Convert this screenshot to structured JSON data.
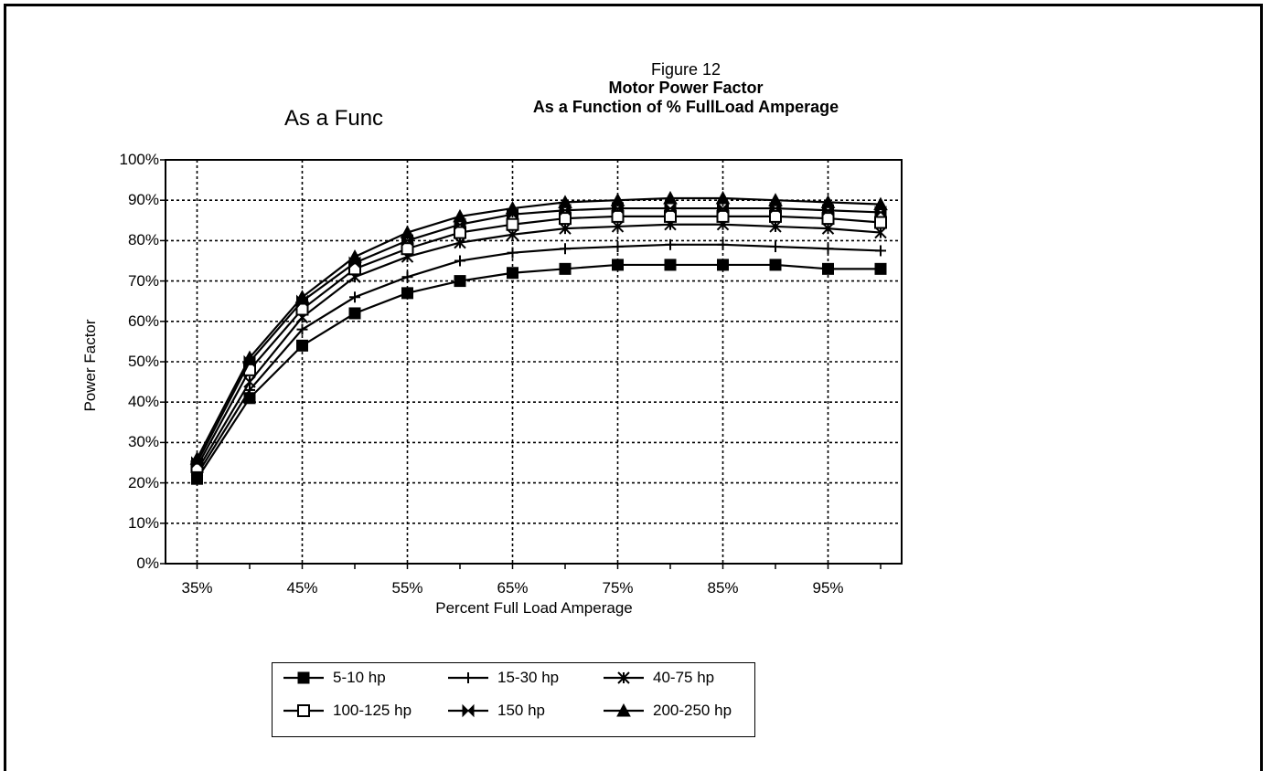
{
  "chart_data": {
    "type": "line",
    "title": "Figure 12",
    "subtitle": "Motor Power Factor",
    "subtitle2": "As a Function of % FullLoad Amperage",
    "stray_text": "As a Func",
    "xlabel": "Percent Full Load Amperage",
    "ylabel": "Power Factor",
    "x": [
      35,
      40,
      45,
      50,
      55,
      60,
      65,
      70,
      75,
      80,
      85,
      90,
      95,
      100
    ],
    "x_tick_labels": [
      "35%",
      "45%",
      "55%",
      "65%",
      "75%",
      "85%",
      "95%"
    ],
    "x_tick_values": [
      35,
      45,
      55,
      65,
      75,
      85,
      95
    ],
    "y_tick_labels": [
      "0%",
      "10%",
      "20%",
      "30%",
      "40%",
      "50%",
      "60%",
      "70%",
      "80%",
      "90%",
      "100%"
    ],
    "xlim": [
      32,
      102
    ],
    "ylim": [
      0,
      100
    ],
    "grid": true,
    "legend_position": "bottom",
    "series": [
      {
        "name": "5-10 hp",
        "marker": "filled-square",
        "values": [
          21,
          41,
          54,
          62,
          67,
          70,
          72,
          73,
          74,
          74,
          74,
          74,
          73,
          73
        ]
      },
      {
        "name": "15-30 hp",
        "marker": "plus",
        "values": [
          22,
          43,
          58,
          66,
          71,
          75,
          77,
          78,
          78.5,
          79,
          79,
          78.5,
          78,
          77.5
        ]
      },
      {
        "name": "40-75 hp",
        "marker": "asterisk",
        "values": [
          23,
          45,
          61,
          71,
          76,
          79.5,
          81.5,
          83,
          83.5,
          84,
          84,
          83.5,
          83,
          82
        ]
      },
      {
        "name": "100-125 hp",
        "marker": "open-square",
        "values": [
          24,
          48,
          63,
          73,
          78,
          82,
          84,
          85.5,
          86,
          86,
          86,
          86,
          85.5,
          84.5
        ]
      },
      {
        "name": "150 hp",
        "marker": "bowtie",
        "values": [
          25,
          50,
          65,
          74.5,
          80,
          84,
          86.5,
          87.5,
          88,
          88,
          88,
          88,
          87.5,
          87
        ]
      },
      {
        "name": "200-250 hp",
        "marker": "triangle",
        "values": [
          26,
          51,
          66,
          76,
          82,
          86,
          88,
          89.5,
          90,
          90.5,
          90.5,
          90,
          89.5,
          89
        ]
      }
    ]
  }
}
